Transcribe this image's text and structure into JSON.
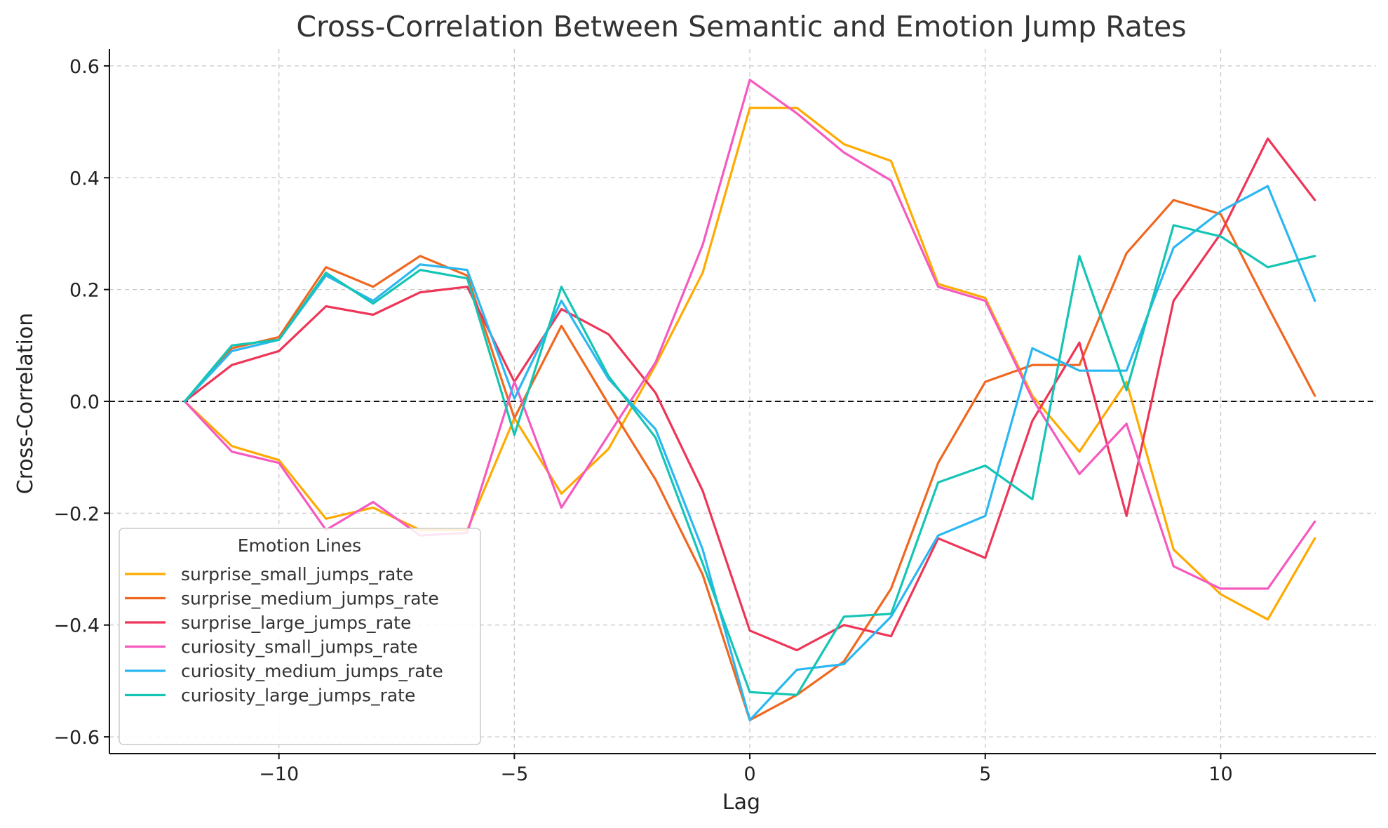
{
  "chart_data": {
    "type": "line",
    "title": "Cross-Correlation Between Semantic and Emotion Jump Rates",
    "xlabel": "Lag",
    "ylabel": "Cross-Correlation",
    "xlim": [
      -13.6,
      13.3
    ],
    "ylim": [
      -0.63,
      0.63
    ],
    "x_ticks": [
      -10,
      -5,
      0,
      5,
      10
    ],
    "x_tick_labels": [
      "−10",
      "−5",
      "0",
      "5",
      "10"
    ],
    "y_ticks": [
      0.6,
      0.4,
      0.2,
      0.0,
      -0.2,
      -0.4,
      -0.6
    ],
    "y_tick_labels": [
      "0.6",
      "0.4",
      "0.2",
      "0.0",
      "−0.2",
      "−0.4",
      "−0.6"
    ],
    "grid": true,
    "zero_line": true,
    "legend": {
      "title": "Emotion Lines",
      "placement": "lower-left"
    },
    "x": [
      -12,
      -11,
      -10,
      -9,
      -8,
      -7,
      -6,
      -5,
      -4,
      -3,
      -2,
      -1,
      0,
      1,
      2,
      3,
      4,
      5,
      6,
      7,
      8,
      9,
      10,
      11,
      12
    ],
    "series": [
      {
        "name": "surprise_small_jumps_rate",
        "color": "#FFAA00",
        "values": [
          0,
          -0.08,
          -0.105,
          -0.21,
          -0.19,
          -0.23,
          -0.23,
          -0.03,
          -0.165,
          -0.085,
          0.065,
          0.23,
          0.525,
          0.525,
          0.46,
          0.43,
          0.21,
          0.185,
          0.01,
          -0.09,
          0.035,
          -0.265,
          -0.345,
          -0.39,
          -0.245
        ]
      },
      {
        "name": "surprise_medium_jumps_rate",
        "color": "#F0671F",
        "values": [
          0,
          0.095,
          0.115,
          0.24,
          0.205,
          0.26,
          0.225,
          -0.03,
          0.135,
          -0.005,
          -0.14,
          -0.31,
          -0.57,
          -0.525,
          -0.465,
          -0.335,
          -0.11,
          0.035,
          0.065,
          0.065,
          0.265,
          0.36,
          0.335,
          0.17,
          0.01
        ]
      },
      {
        "name": "surprise_large_jumps_rate",
        "color": "#EE3557",
        "values": [
          0,
          0.065,
          0.09,
          0.17,
          0.155,
          0.195,
          0.205,
          0.035,
          0.165,
          0.12,
          0.015,
          -0.16,
          -0.41,
          -0.445,
          -0.4,
          -0.42,
          -0.245,
          -0.28,
          -0.035,
          0.105,
          -0.205,
          0.18,
          0.3,
          0.47,
          0.36
        ]
      },
      {
        "name": "curiosity_small_jumps_rate",
        "color": "#F659C0",
        "values": [
          0,
          -0.09,
          -0.11,
          -0.23,
          -0.18,
          -0.24,
          -0.235,
          0.035,
          -0.19,
          -0.06,
          0.07,
          0.28,
          0.575,
          0.515,
          0.445,
          0.395,
          0.205,
          0.18,
          0.005,
          -0.13,
          -0.04,
          -0.295,
          -0.335,
          -0.335,
          -0.215
        ]
      },
      {
        "name": "curiosity_medium_jumps_rate",
        "color": "#2BB7F2",
        "values": [
          0,
          0.09,
          0.11,
          0.225,
          0.18,
          0.245,
          0.235,
          0.005,
          0.18,
          0.04,
          -0.05,
          -0.265,
          -0.57,
          -0.48,
          -0.47,
          -0.385,
          -0.24,
          -0.205,
          0.095,
          0.055,
          0.055,
          0.275,
          0.34,
          0.385,
          0.18
        ]
      },
      {
        "name": "curiosity_large_jumps_rate",
        "color": "#14C5B5",
        "values": [
          0,
          0.1,
          0.11,
          0.23,
          0.175,
          0.235,
          0.22,
          -0.06,
          0.205,
          0.045,
          -0.065,
          -0.29,
          -0.52,
          -0.525,
          -0.385,
          -0.38,
          -0.145,
          -0.115,
          -0.175,
          0.26,
          0.02,
          0.315,
          0.295,
          0.24,
          0.26
        ]
      }
    ]
  }
}
